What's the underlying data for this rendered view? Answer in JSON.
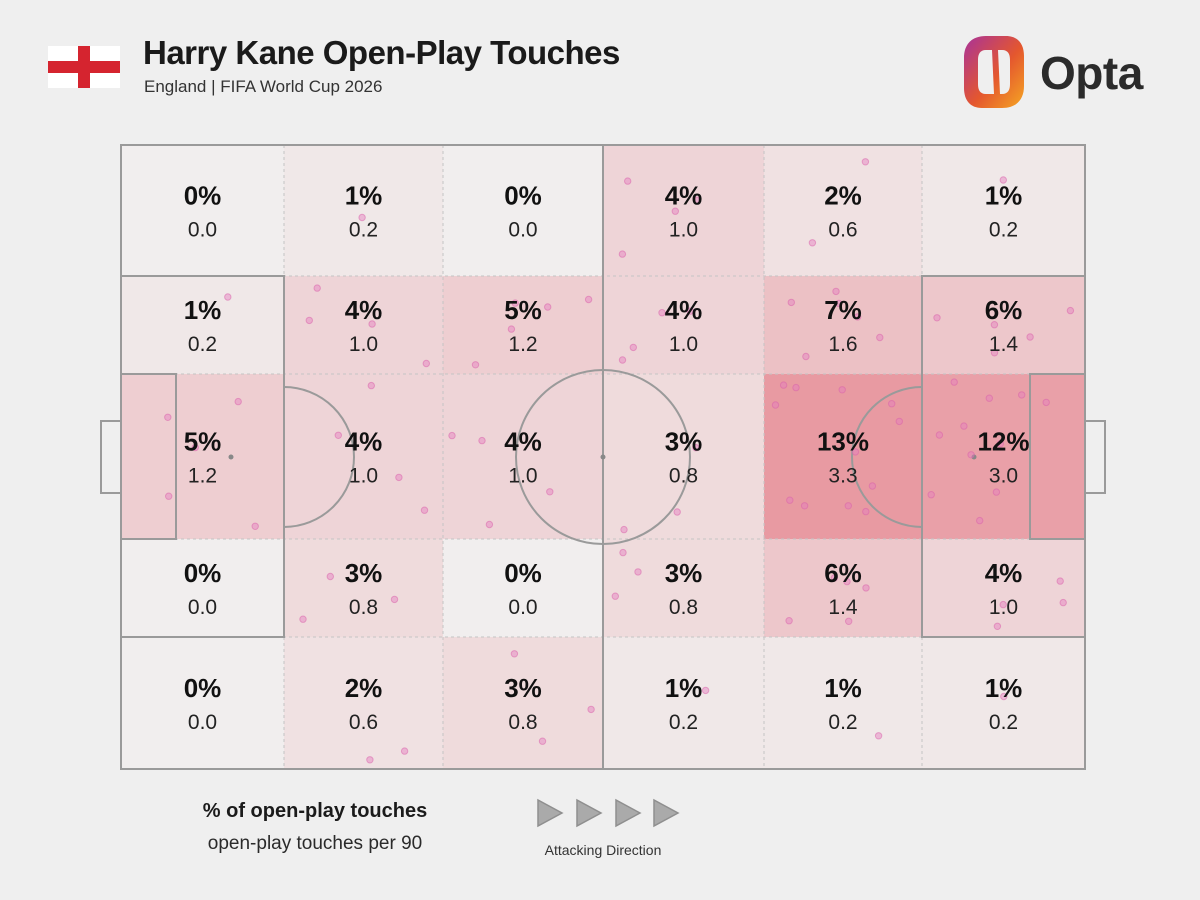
{
  "header": {
    "title": "Harry Kane Open-Play Touches",
    "subtitle": "England | FIFA World Cup 2026",
    "brand": "Opta",
    "flag": "england-flag"
  },
  "legend": {
    "title": "% of open-play touches",
    "subtitle": "open-play touches per 90",
    "direction_label": "Attacking Direction"
  },
  "colors": {
    "background": "#efefef",
    "pitch_lines": "#9a9a9a",
    "heat_low": "#f1eeee",
    "heat_high": "#e89aa2",
    "dots": "#e47cbf",
    "brand_gradient": [
      "#a8329a",
      "#e4572e",
      "#f5a623"
    ]
  },
  "chart_data": {
    "type": "heatmap",
    "title": "Harry Kane Open-Play Touches",
    "subtitle": "England | FIFA World Cup 2026",
    "columns": 6,
    "rows": 5,
    "cells": [
      [
        {
          "pct": "0%",
          "per90": "0.0",
          "share": 0
        },
        {
          "pct": "1%",
          "per90": "0.2",
          "share": 1
        },
        {
          "pct": "0%",
          "per90": "0.0",
          "share": 0
        },
        {
          "pct": "4%",
          "per90": "1.0",
          "share": 4
        },
        {
          "pct": "2%",
          "per90": "0.6",
          "share": 2
        },
        {
          "pct": "1%",
          "per90": "0.2",
          "share": 1
        }
      ],
      [
        {
          "pct": "1%",
          "per90": "0.2",
          "share": 1
        },
        {
          "pct": "4%",
          "per90": "1.0",
          "share": 4
        },
        {
          "pct": "5%",
          "per90": "1.2",
          "share": 5
        },
        {
          "pct": "4%",
          "per90": "1.0",
          "share": 4
        },
        {
          "pct": "7%",
          "per90": "1.6",
          "share": 7
        },
        {
          "pct": "6%",
          "per90": "1.4",
          "share": 6
        }
      ],
      [
        {
          "pct": "5%",
          "per90": "1.2",
          "share": 5
        },
        {
          "pct": "4%",
          "per90": "1.0",
          "share": 4
        },
        {
          "pct": "4%",
          "per90": "1.0",
          "share": 4
        },
        {
          "pct": "3%",
          "per90": "0.8",
          "share": 3
        },
        {
          "pct": "13%",
          "per90": "3.3",
          "share": 13
        },
        {
          "pct": "12%",
          "per90": "3.0",
          "share": 12
        }
      ],
      [
        {
          "pct": "0%",
          "per90": "0.0",
          "share": 0
        },
        {
          "pct": "3%",
          "per90": "0.8",
          "share": 3
        },
        {
          "pct": "0%",
          "per90": "0.0",
          "share": 0
        },
        {
          "pct": "3%",
          "per90": "0.8",
          "share": 3
        },
        {
          "pct": "6%",
          "per90": "1.4",
          "share": 6
        },
        {
          "pct": "4%",
          "per90": "1.0",
          "share": 4
        }
      ],
      [
        {
          "pct": "0%",
          "per90": "0.0",
          "share": 0
        },
        {
          "pct": "2%",
          "per90": "0.6",
          "share": 2
        },
        {
          "pct": "3%",
          "per90": "0.8",
          "share": 3
        },
        {
          "pct": "1%",
          "per90": "0.2",
          "share": 1
        },
        {
          "pct": "1%",
          "per90": "0.2",
          "share": 1
        },
        {
          "pct": "1%",
          "per90": "0.2",
          "share": 1
        }
      ]
    ]
  }
}
